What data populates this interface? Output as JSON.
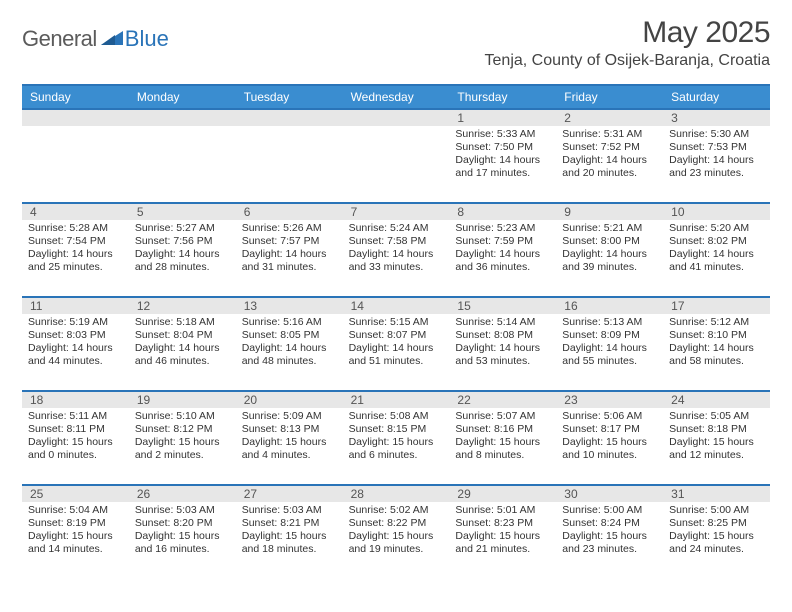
{
  "brand": {
    "part1": "General",
    "part2": "Blue"
  },
  "title": {
    "month_year": "May 2025",
    "location": "Tenja, County of Osijek-Baranja, Croatia"
  },
  "colors": {
    "header_bg": "#3a8dd0",
    "rule": "#2a74b8",
    "daynum_bg": "#e7e7e7",
    "text": "#333333",
    "brand_gray": "#5b5b5b",
    "brand_blue": "#2a74b8",
    "page_bg": "#ffffff"
  },
  "days_of_week": [
    "Sunday",
    "Monday",
    "Tuesday",
    "Wednesday",
    "Thursday",
    "Friday",
    "Saturday"
  ],
  "weeks": [
    [
      {
        "n": "",
        "sr": "",
        "ss": "",
        "dl": ""
      },
      {
        "n": "",
        "sr": "",
        "ss": "",
        "dl": ""
      },
      {
        "n": "",
        "sr": "",
        "ss": "",
        "dl": ""
      },
      {
        "n": "",
        "sr": "",
        "ss": "",
        "dl": ""
      },
      {
        "n": "1",
        "sr": "Sunrise: 5:33 AM",
        "ss": "Sunset: 7:50 PM",
        "dl": "Daylight: 14 hours and 17 minutes."
      },
      {
        "n": "2",
        "sr": "Sunrise: 5:31 AM",
        "ss": "Sunset: 7:52 PM",
        "dl": "Daylight: 14 hours and 20 minutes."
      },
      {
        "n": "3",
        "sr": "Sunrise: 5:30 AM",
        "ss": "Sunset: 7:53 PM",
        "dl": "Daylight: 14 hours and 23 minutes."
      }
    ],
    [
      {
        "n": "4",
        "sr": "Sunrise: 5:28 AM",
        "ss": "Sunset: 7:54 PM",
        "dl": "Daylight: 14 hours and 25 minutes."
      },
      {
        "n": "5",
        "sr": "Sunrise: 5:27 AM",
        "ss": "Sunset: 7:56 PM",
        "dl": "Daylight: 14 hours and 28 minutes."
      },
      {
        "n": "6",
        "sr": "Sunrise: 5:26 AM",
        "ss": "Sunset: 7:57 PM",
        "dl": "Daylight: 14 hours and 31 minutes."
      },
      {
        "n": "7",
        "sr": "Sunrise: 5:24 AM",
        "ss": "Sunset: 7:58 PM",
        "dl": "Daylight: 14 hours and 33 minutes."
      },
      {
        "n": "8",
        "sr": "Sunrise: 5:23 AM",
        "ss": "Sunset: 7:59 PM",
        "dl": "Daylight: 14 hours and 36 minutes."
      },
      {
        "n": "9",
        "sr": "Sunrise: 5:21 AM",
        "ss": "Sunset: 8:00 PM",
        "dl": "Daylight: 14 hours and 39 minutes."
      },
      {
        "n": "10",
        "sr": "Sunrise: 5:20 AM",
        "ss": "Sunset: 8:02 PM",
        "dl": "Daylight: 14 hours and 41 minutes."
      }
    ],
    [
      {
        "n": "11",
        "sr": "Sunrise: 5:19 AM",
        "ss": "Sunset: 8:03 PM",
        "dl": "Daylight: 14 hours and 44 minutes."
      },
      {
        "n": "12",
        "sr": "Sunrise: 5:18 AM",
        "ss": "Sunset: 8:04 PM",
        "dl": "Daylight: 14 hours and 46 minutes."
      },
      {
        "n": "13",
        "sr": "Sunrise: 5:16 AM",
        "ss": "Sunset: 8:05 PM",
        "dl": "Daylight: 14 hours and 48 minutes."
      },
      {
        "n": "14",
        "sr": "Sunrise: 5:15 AM",
        "ss": "Sunset: 8:07 PM",
        "dl": "Daylight: 14 hours and 51 minutes."
      },
      {
        "n": "15",
        "sr": "Sunrise: 5:14 AM",
        "ss": "Sunset: 8:08 PM",
        "dl": "Daylight: 14 hours and 53 minutes."
      },
      {
        "n": "16",
        "sr": "Sunrise: 5:13 AM",
        "ss": "Sunset: 8:09 PM",
        "dl": "Daylight: 14 hours and 55 minutes."
      },
      {
        "n": "17",
        "sr": "Sunrise: 5:12 AM",
        "ss": "Sunset: 8:10 PM",
        "dl": "Daylight: 14 hours and 58 minutes."
      }
    ],
    [
      {
        "n": "18",
        "sr": "Sunrise: 5:11 AM",
        "ss": "Sunset: 8:11 PM",
        "dl": "Daylight: 15 hours and 0 minutes."
      },
      {
        "n": "19",
        "sr": "Sunrise: 5:10 AM",
        "ss": "Sunset: 8:12 PM",
        "dl": "Daylight: 15 hours and 2 minutes."
      },
      {
        "n": "20",
        "sr": "Sunrise: 5:09 AM",
        "ss": "Sunset: 8:13 PM",
        "dl": "Daylight: 15 hours and 4 minutes."
      },
      {
        "n": "21",
        "sr": "Sunrise: 5:08 AM",
        "ss": "Sunset: 8:15 PM",
        "dl": "Daylight: 15 hours and 6 minutes."
      },
      {
        "n": "22",
        "sr": "Sunrise: 5:07 AM",
        "ss": "Sunset: 8:16 PM",
        "dl": "Daylight: 15 hours and 8 minutes."
      },
      {
        "n": "23",
        "sr": "Sunrise: 5:06 AM",
        "ss": "Sunset: 8:17 PM",
        "dl": "Daylight: 15 hours and 10 minutes."
      },
      {
        "n": "24",
        "sr": "Sunrise: 5:05 AM",
        "ss": "Sunset: 8:18 PM",
        "dl": "Daylight: 15 hours and 12 minutes."
      }
    ],
    [
      {
        "n": "25",
        "sr": "Sunrise: 5:04 AM",
        "ss": "Sunset: 8:19 PM",
        "dl": "Daylight: 15 hours and 14 minutes."
      },
      {
        "n": "26",
        "sr": "Sunrise: 5:03 AM",
        "ss": "Sunset: 8:20 PM",
        "dl": "Daylight: 15 hours and 16 minutes."
      },
      {
        "n": "27",
        "sr": "Sunrise: 5:03 AM",
        "ss": "Sunset: 8:21 PM",
        "dl": "Daylight: 15 hours and 18 minutes."
      },
      {
        "n": "28",
        "sr": "Sunrise: 5:02 AM",
        "ss": "Sunset: 8:22 PM",
        "dl": "Daylight: 15 hours and 19 minutes."
      },
      {
        "n": "29",
        "sr": "Sunrise: 5:01 AM",
        "ss": "Sunset: 8:23 PM",
        "dl": "Daylight: 15 hours and 21 minutes."
      },
      {
        "n": "30",
        "sr": "Sunrise: 5:00 AM",
        "ss": "Sunset: 8:24 PM",
        "dl": "Daylight: 15 hours and 23 minutes."
      },
      {
        "n": "31",
        "sr": "Sunrise: 5:00 AM",
        "ss": "Sunset: 8:25 PM",
        "dl": "Daylight: 15 hours and 24 minutes."
      }
    ]
  ]
}
